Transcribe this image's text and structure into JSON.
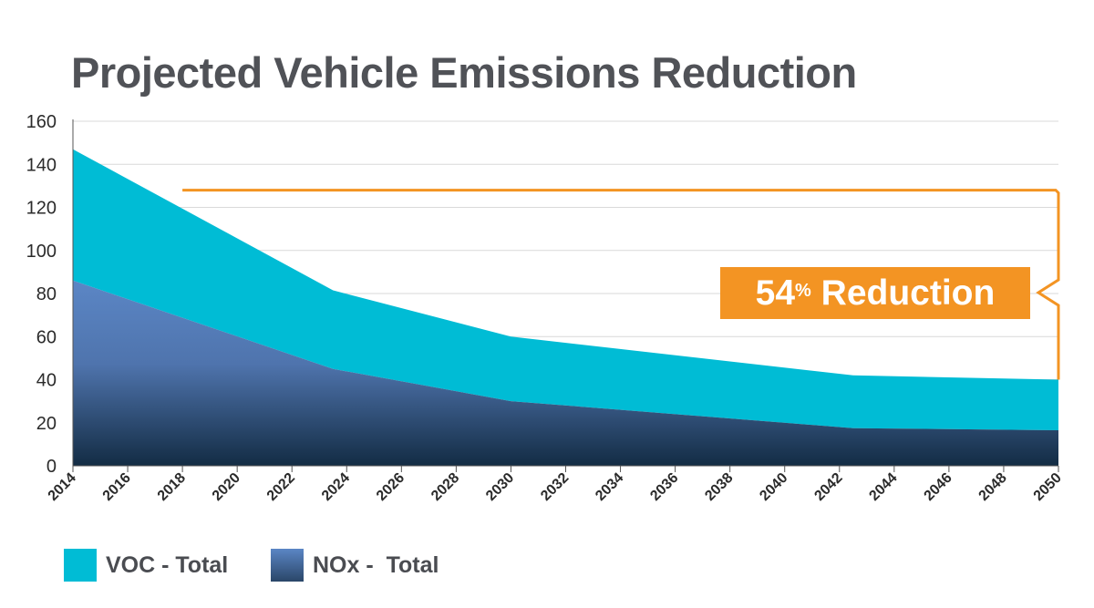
{
  "chart_data": {
    "type": "area",
    "stacked": true,
    "title": "Projected Vehicle Emissions Reduction",
    "x_ticks": [
      "2014",
      "2016",
      "2018",
      "2020",
      "2022",
      "2024",
      "2026",
      "2028",
      "2030",
      "2032",
      "2034",
      "2036",
      "2038",
      "2040",
      "2042",
      "2044",
      "2046",
      "2048",
      "2050"
    ],
    "y_ticks": [
      0,
      20,
      40,
      60,
      80,
      100,
      120,
      140,
      160
    ],
    "xlim": [
      2014,
      2050
    ],
    "ylim": [
      0,
      160
    ],
    "grid": true,
    "x": [
      2014,
      2023.5,
      2030,
      2042.5,
      2050
    ],
    "series": [
      {
        "name": "NOx -  Total",
        "color": "#5b86c5",
        "color_dark": "#132c44",
        "values": [
          86,
          45,
          30,
          17.5,
          16.5
        ]
      },
      {
        "name": "VOC - Total",
        "color": "#00bcd5",
        "values": [
          61,
          36.5,
          30,
          24.5,
          23.5
        ]
      }
    ],
    "legend_position": "bottom-left",
    "annotation": {
      "value": "54",
      "unit": "%",
      "text": "Reduction",
      "color": "#f39423",
      "from_value": 128,
      "to_value": 40,
      "x_start": 2018
    }
  }
}
